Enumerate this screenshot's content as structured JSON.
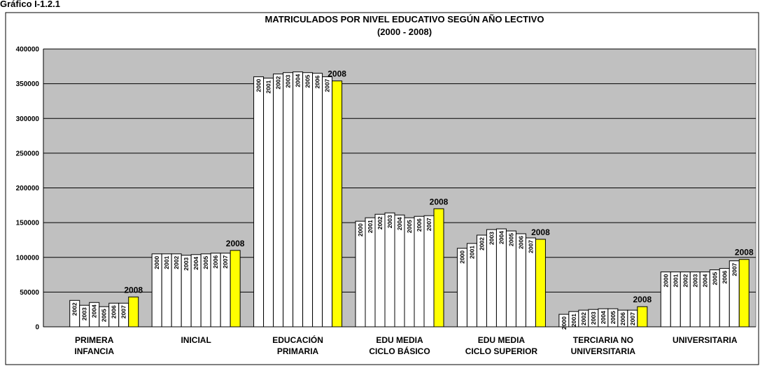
{
  "caption": "Gráfico I-1.2.1",
  "chart_data": {
    "type": "bar",
    "title": "MATRICULADOS POR NIVEL EDUCATIVO SEGÚN AÑO LECTIVO",
    "subtitle": "(2000 - 2008)",
    "categories": [
      [
        "PRIMERA",
        "INFANCIA"
      ],
      [
        "INICIAL"
      ],
      [
        "EDUCACIÓN",
        "PRIMARIA"
      ],
      [
        "EDU MEDIA",
        "CICLO BÁSICO"
      ],
      [
        "EDU MEDIA",
        "CICLO SUPERIOR"
      ],
      [
        "TERCIARIA NO",
        "UNIVERSITARIA"
      ],
      [
        "UNIVERSITARIA"
      ]
    ],
    "series": [
      {
        "name": "2000",
        "color": "#ffffff",
        "values": [
          null,
          105000,
          360000,
          152000,
          113000,
          18000,
          79000
        ]
      },
      {
        "name": "2001",
        "color": "#ffffff",
        "values": [
          null,
          105000,
          358000,
          157000,
          120000,
          22000,
          79000
        ]
      },
      {
        "name": "2002",
        "color": "#ffffff",
        "values": [
          38000,
          105000,
          364000,
          162000,
          132000,
          24000,
          79000
        ]
      },
      {
        "name": "2003",
        "color": "#ffffff",
        "values": [
          31000,
          103000,
          366000,
          164000,
          140000,
          25000,
          79000
        ]
      },
      {
        "name": "2004",
        "color": "#ffffff",
        "values": [
          35000,
          104000,
          367000,
          161000,
          141000,
          26000,
          79000
        ]
      },
      {
        "name": "2005",
        "color": "#ffffff",
        "values": [
          29000,
          105000,
          366000,
          157000,
          138000,
          26000,
          82000
        ]
      },
      {
        "name": "2006",
        "color": "#ffffff",
        "values": [
          34000,
          106000,
          365000,
          159000,
          134000,
          24000,
          84000
        ]
      },
      {
        "name": "2007",
        "color": "#ffffff",
        "values": [
          34000,
          106000,
          360000,
          160000,
          128000,
          24000,
          95000
        ]
      },
      {
        "name": "2008",
        "color": "#ffff00",
        "values": [
          43000,
          110000,
          354000,
          170000,
          126000,
          29000,
          97000
        ]
      }
    ],
    "ylim": [
      0,
      400000
    ],
    "yticks": [
      0,
      50000,
      100000,
      150000,
      200000,
      250000,
      300000,
      350000,
      400000
    ],
    "grid": true,
    "background": "#c0c0c0"
  }
}
